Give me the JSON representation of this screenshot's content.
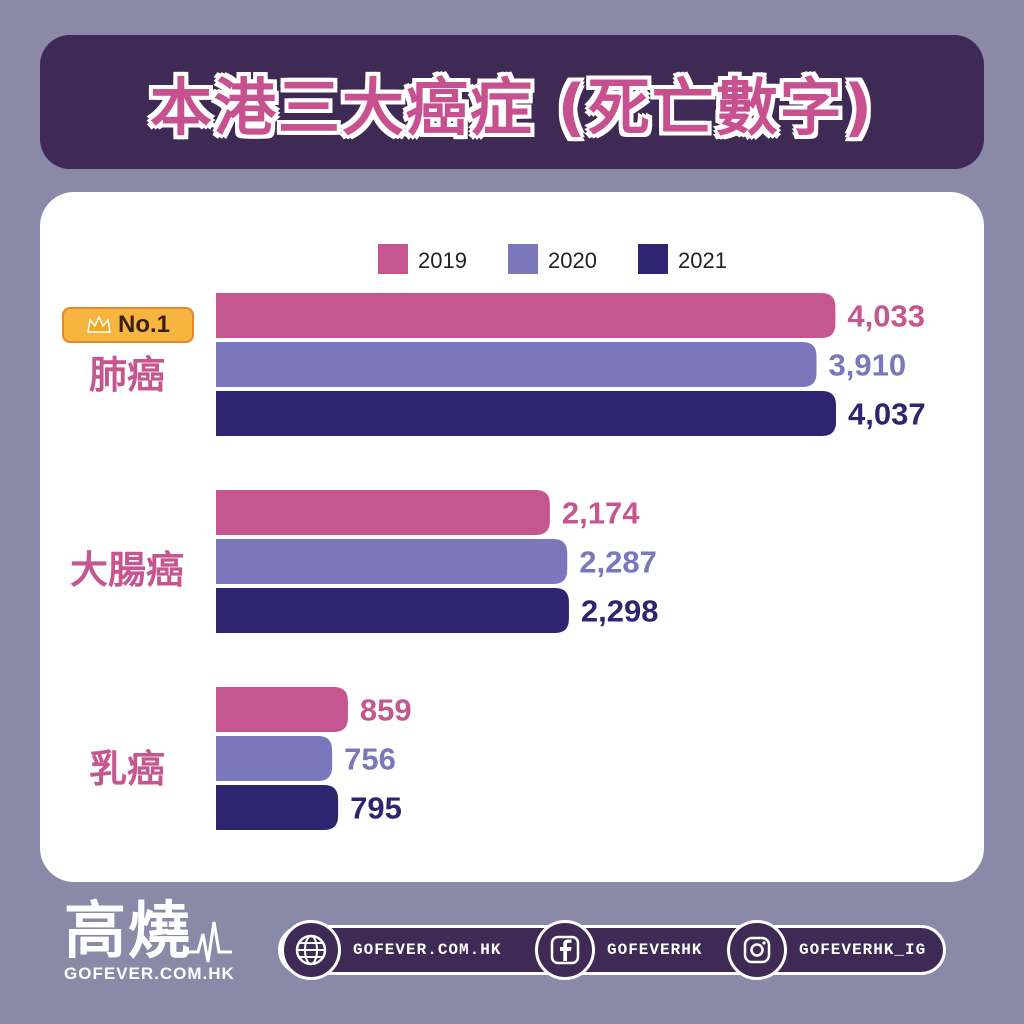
{
  "title": "本港三大癌症 (死亡數字)",
  "badge": {
    "label": "No.1",
    "icon": "crown-icon"
  },
  "chart_data": {
    "type": "bar",
    "orientation": "horizontal",
    "categories": [
      "肺癌",
      "大腸癌",
      "乳癌"
    ],
    "series": [
      {
        "name": "2019",
        "color": "#c5568f",
        "values": [
          4033,
          2174,
          859
        ],
        "labels": [
          "4,033",
          "2,174",
          "859"
        ]
      },
      {
        "name": "2020",
        "color": "#7b77bd",
        "values": [
          3910,
          2287,
          756
        ],
        "labels": [
          "3,910",
          "2,287",
          "756"
        ]
      },
      {
        "name": "2021",
        "color": "#2e2470",
        "values": [
          4037,
          2298,
          795
        ],
        "labels": [
          "4,037",
          "2,298",
          "795"
        ]
      }
    ],
    "category_label_color": "#c5568f",
    "legend_position": "top",
    "grid": false
  },
  "footer": {
    "logo_main": "高燒",
    "logo_sub": "GOFEVER.COM.HK",
    "social": [
      {
        "icon": "globe-icon",
        "label": "GOFEVER.COM.HK"
      },
      {
        "icon": "facebook-icon",
        "label": "GOFEVERHK"
      },
      {
        "icon": "instagram-icon",
        "label": "GOFEVERHK_IG"
      }
    ]
  }
}
